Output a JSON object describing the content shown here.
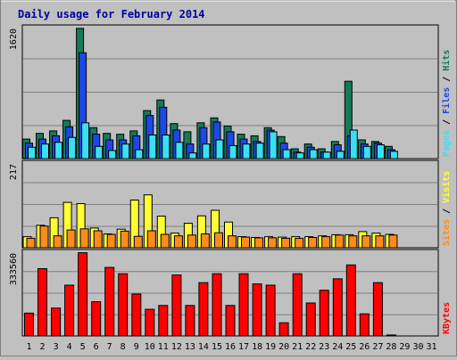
{
  "chart_data": {
    "type": "bar",
    "title": "Daily usage for February 2014",
    "days": [
      "1",
      "2",
      "3",
      "4",
      "5",
      "6",
      "7",
      "8",
      "9",
      "10",
      "11",
      "12",
      "13",
      "14",
      "15",
      "16",
      "17",
      "18",
      "19",
      "20",
      "21",
      "22",
      "23",
      "24",
      "25",
      "26",
      "27",
      "28",
      "29",
      "30",
      "31"
    ],
    "weekend_days": [
      "1",
      "2",
      "8",
      "9",
      "15",
      "16",
      "22",
      "23",
      "29",
      "30"
    ],
    "panels": [
      {
        "id": "hits",
        "ymax_label": "1620",
        "ymax": 1620,
        "legend": [
          "Pages",
          "Files",
          "Hits"
        ],
        "series": [
          {
            "name": "Hits",
            "color": "#157a5a",
            "values": [
              240,
              310,
              340,
              470,
              1600,
              380,
              310,
              300,
              340,
              590,
              720,
              430,
              330,
              440,
              500,
              400,
              300,
              280,
              380,
              270,
              120,
              180,
              120,
              210,
              950,
              230,
              210,
              150,
              0,
              0,
              0
            ]
          },
          {
            "name": "Files",
            "color": "#1e48e6",
            "values": [
              190,
              240,
              280,
              390,
              1300,
              300,
              230,
              230,
              280,
              530,
              630,
              350,
              180,
              380,
              450,
              330,
              240,
              210,
              350,
              190,
              80,
              140,
              80,
              170,
              280,
              180,
              190,
              110,
              0,
              0,
              0
            ]
          },
          {
            "name": "Pages",
            "color": "#39e0f3",
            "values": [
              140,
              180,
              200,
              260,
              440,
              150,
              100,
              180,
              110,
              290,
              290,
              200,
              70,
              180,
              230,
              160,
              180,
              190,
              330,
              110,
              70,
              110,
              80,
              90,
              350,
              150,
              170,
              90,
              0,
              0,
              0
            ]
          }
        ]
      },
      {
        "id": "visits",
        "ymax_label": "217",
        "ymax": 217,
        "legend": [
          "Sites",
          "Visits"
        ],
        "series": [
          {
            "name": "Visits",
            "color": "#ffff33",
            "values": [
              28,
              57,
              76,
              115,
              112,
              50,
              35,
              47,
              121,
              134,
              80,
              37,
              62,
              81,
              95,
              65,
              28,
              26,
              28,
              27,
              28,
              28,
              30,
              33,
              33,
              41,
              37,
              34,
              0,
              0,
              0
            ]
          },
          {
            "name": "Sites",
            "color": "#ff8c1a",
            "values": [
              24,
              55,
              30,
              45,
              48,
              43,
              34,
              42,
              29,
              43,
              34,
              30,
              32,
              35,
              38,
              30,
              27,
              25,
              25,
              24,
              24,
              26,
              28,
              32,
              30,
              30,
              30,
              32,
              0,
              0,
              0
            ]
          }
        ]
      },
      {
        "id": "kbytes",
        "ymax_label": "333560",
        "ymax": 333560,
        "legend": [
          "KBytes"
        ],
        "series": [
          {
            "name": "KBytes",
            "color": "#ff0000",
            "values": [
              90000,
              265000,
              110000,
              200000,
              328000,
              135000,
              270000,
              245000,
              165000,
              105000,
              120000,
              240000,
              120000,
              210000,
              245000,
              120000,
              245000,
              205000,
              200000,
              52000,
              245000,
              130000,
              180000,
              225000,
              280000,
              87000,
              210000,
              4000,
              0,
              0,
              0
            ]
          }
        ]
      }
    ]
  }
}
